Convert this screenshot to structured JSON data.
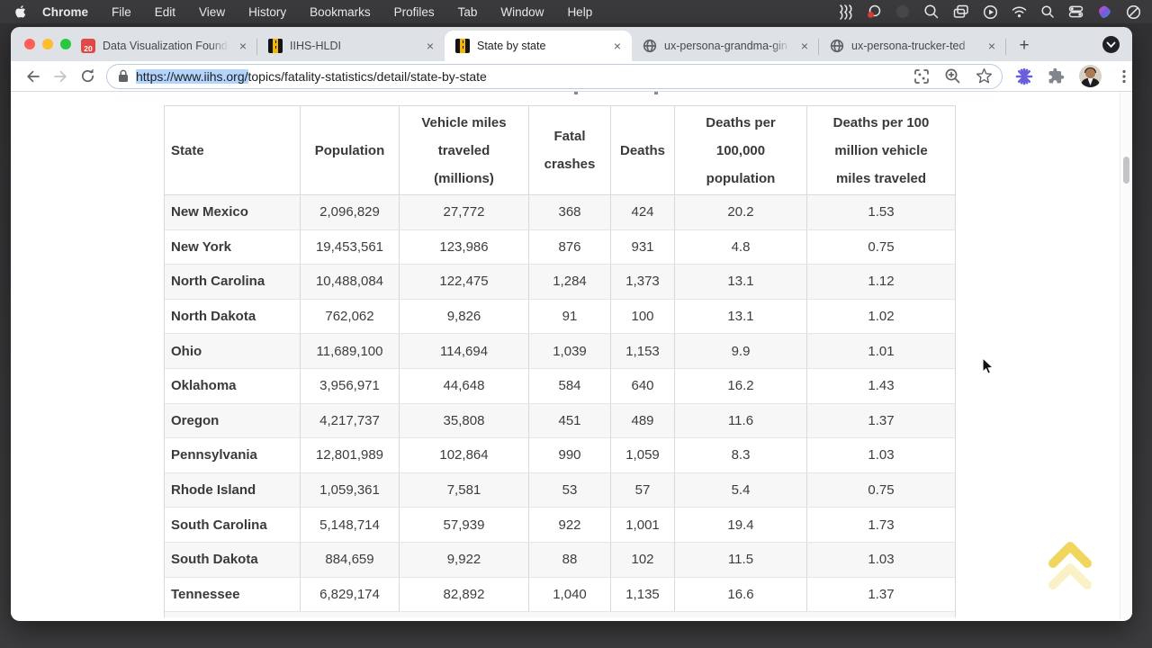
{
  "menu_bar": {
    "app_name": "Chrome",
    "items": [
      "File",
      "Edit",
      "View",
      "History",
      "Bookmarks",
      "Profiles",
      "Tab",
      "Window",
      "Help"
    ],
    "status_icons": [
      "journeys",
      "screen-recording",
      "hidden-status",
      "zoom",
      "screen-mirroring",
      "now-playing",
      "wifi",
      "spotlight",
      "control-center",
      "creative-app",
      "do-not-disturb"
    ]
  },
  "glyphs": {
    "close": "×",
    "plus": "+"
  },
  "tabs": [
    {
      "label": "Data Visualization Founda",
      "favicon": "red-badge",
      "badge": "20"
    },
    {
      "label": "IIHS-HLDI",
      "favicon": "iihs-road"
    },
    {
      "label": "State by state",
      "favicon": "iihs-road",
      "active": true
    },
    {
      "label": "ux-persona-grandma-gin",
      "favicon": "globe"
    },
    {
      "label": "ux-persona-trucker-ted",
      "favicon": "globe"
    }
  ],
  "toolbar": {
    "url_selected": "https://www.iihs.org/",
    "url_rest": "topics/fatality-statistics/detail/state-by-state"
  },
  "table": {
    "headers": [
      "State",
      "Population",
      "Vehicle miles traveled (millions)",
      "Fatal crashes",
      "Deaths",
      "Deaths per 100,000 population",
      "Deaths per 100 million vehicle miles traveled"
    ],
    "rows": [
      [
        "New Mexico",
        "2,096,829",
        "27,772",
        "368",
        "424",
        "20.2",
        "1.53"
      ],
      [
        "New York",
        "19,453,561",
        "123,986",
        "876",
        "931",
        "4.8",
        "0.75"
      ],
      [
        "North Carolina",
        "10,488,084",
        "122,475",
        "1,284",
        "1,373",
        "13.1",
        "1.12"
      ],
      [
        "North Dakota",
        "762,062",
        "9,826",
        "91",
        "100",
        "13.1",
        "1.02"
      ],
      [
        "Ohio",
        "11,689,100",
        "114,694",
        "1,039",
        "1,153",
        "9.9",
        "1.01"
      ],
      [
        "Oklahoma",
        "3,956,971",
        "44,648",
        "584",
        "640",
        "16.2",
        "1.43"
      ],
      [
        "Oregon",
        "4,217,737",
        "35,808",
        "451",
        "489",
        "11.6",
        "1.37"
      ],
      [
        "Pennsylvania",
        "12,801,989",
        "102,864",
        "990",
        "1,059",
        "8.3",
        "1.03"
      ],
      [
        "Rhode Island",
        "1,059,361",
        "7,581",
        "53",
        "57",
        "5.4",
        "0.75"
      ],
      [
        "South Carolina",
        "5,148,714",
        "57,939",
        "922",
        "1,001",
        "19.4",
        "1.73"
      ],
      [
        "South Dakota",
        "884,659",
        "9,922",
        "88",
        "102",
        "11.5",
        "1.03"
      ],
      [
        "Tennessee",
        "6,829,174",
        "82,892",
        "1,040",
        "1,135",
        "16.6",
        "1.37"
      ]
    ]
  },
  "colors": {
    "selection_highlight": "#b3d4fc",
    "iihs_gold": "#f2b705",
    "scroll_top_yellow": "#eed24d",
    "row_stripe": "#f7f7f8",
    "traffic_red": "#ff5f57",
    "traffic_yellow": "#febc2e",
    "traffic_green": "#28c840"
  }
}
